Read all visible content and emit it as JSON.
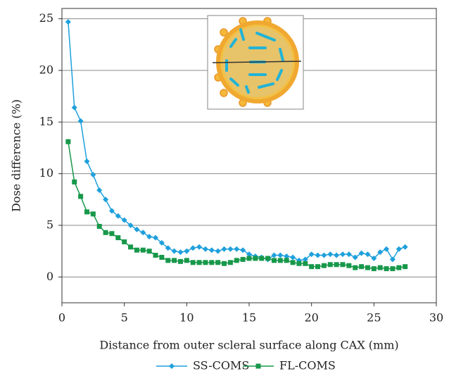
{
  "chart_data": {
    "type": "line",
    "xlabel": "Distance from outer scleral surface along CAX (mm)",
    "ylabel": "Dose difference (%)",
    "x": [
      0.5,
      1,
      1.5,
      2,
      2.5,
      3,
      3.5,
      4,
      4.5,
      5,
      5.5,
      6,
      6.5,
      7,
      7.5,
      8,
      8.5,
      9,
      9.5,
      10,
      10.5,
      11,
      11.5,
      12,
      12.5,
      13,
      13.5,
      14,
      14.5,
      15,
      15.5,
      16,
      16.5,
      17,
      17.5,
      18,
      18.5,
      19,
      19.5,
      20,
      20.5,
      21,
      21.5,
      22,
      22.5,
      23,
      23.5,
      24,
      24.5,
      25,
      25.5,
      26,
      26.5,
      27,
      27.5
    ],
    "series": [
      {
        "name": "SS-COMS",
        "color": "#1ea0dc",
        "marker": "diamond",
        "values": [
          24.7,
          16.4,
          15.1,
          11.2,
          9.9,
          8.4,
          7.5,
          6.4,
          5.9,
          5.5,
          5.0,
          4.6,
          4.3,
          3.9,
          3.8,
          3.3,
          2.8,
          2.5,
          2.4,
          2.5,
          2.8,
          2.9,
          2.7,
          2.6,
          2.5,
          2.7,
          2.7,
          2.7,
          2.6,
          2.2,
          2.0,
          1.9,
          1.7,
          2.1,
          2.1,
          2.0,
          1.9,
          1.6,
          1.7,
          2.2,
          2.1,
          2.1,
          2.2,
          2.1,
          2.2,
          2.2,
          1.9,
          2.3,
          2.2,
          1.8,
          2.4,
          2.7,
          1.7,
          2.7,
          2.9
        ]
      },
      {
        "name": "FL-COMS",
        "color": "#17984a",
        "marker": "square",
        "values": [
          13.1,
          9.2,
          7.8,
          6.3,
          6.1,
          4.9,
          4.3,
          4.2,
          3.8,
          3.4,
          2.9,
          2.6,
          2.6,
          2.5,
          2.1,
          1.9,
          1.6,
          1.6,
          1.5,
          1.6,
          1.4,
          1.4,
          1.4,
          1.4,
          1.4,
          1.3,
          1.4,
          1.6,
          1.7,
          1.8,
          1.8,
          1.8,
          1.8,
          1.6,
          1.6,
          1.6,
          1.4,
          1.3,
          1.3,
          1.0,
          1.0,
          1.1,
          1.2,
          1.2,
          1.2,
          1.1,
          0.9,
          1.0,
          0.9,
          0.8,
          0.9,
          0.8,
          0.8,
          0.9,
          1.0
        ]
      }
    ],
    "xlim": [
      0,
      30
    ],
    "xticks": [
      0,
      5,
      10,
      15,
      20,
      25,
      30
    ],
    "ylim": [
      -2.5,
      26
    ],
    "yticks": [
      0,
      5,
      10,
      15,
      20,
      25
    ],
    "grid": true,
    "legend": "bottom"
  }
}
